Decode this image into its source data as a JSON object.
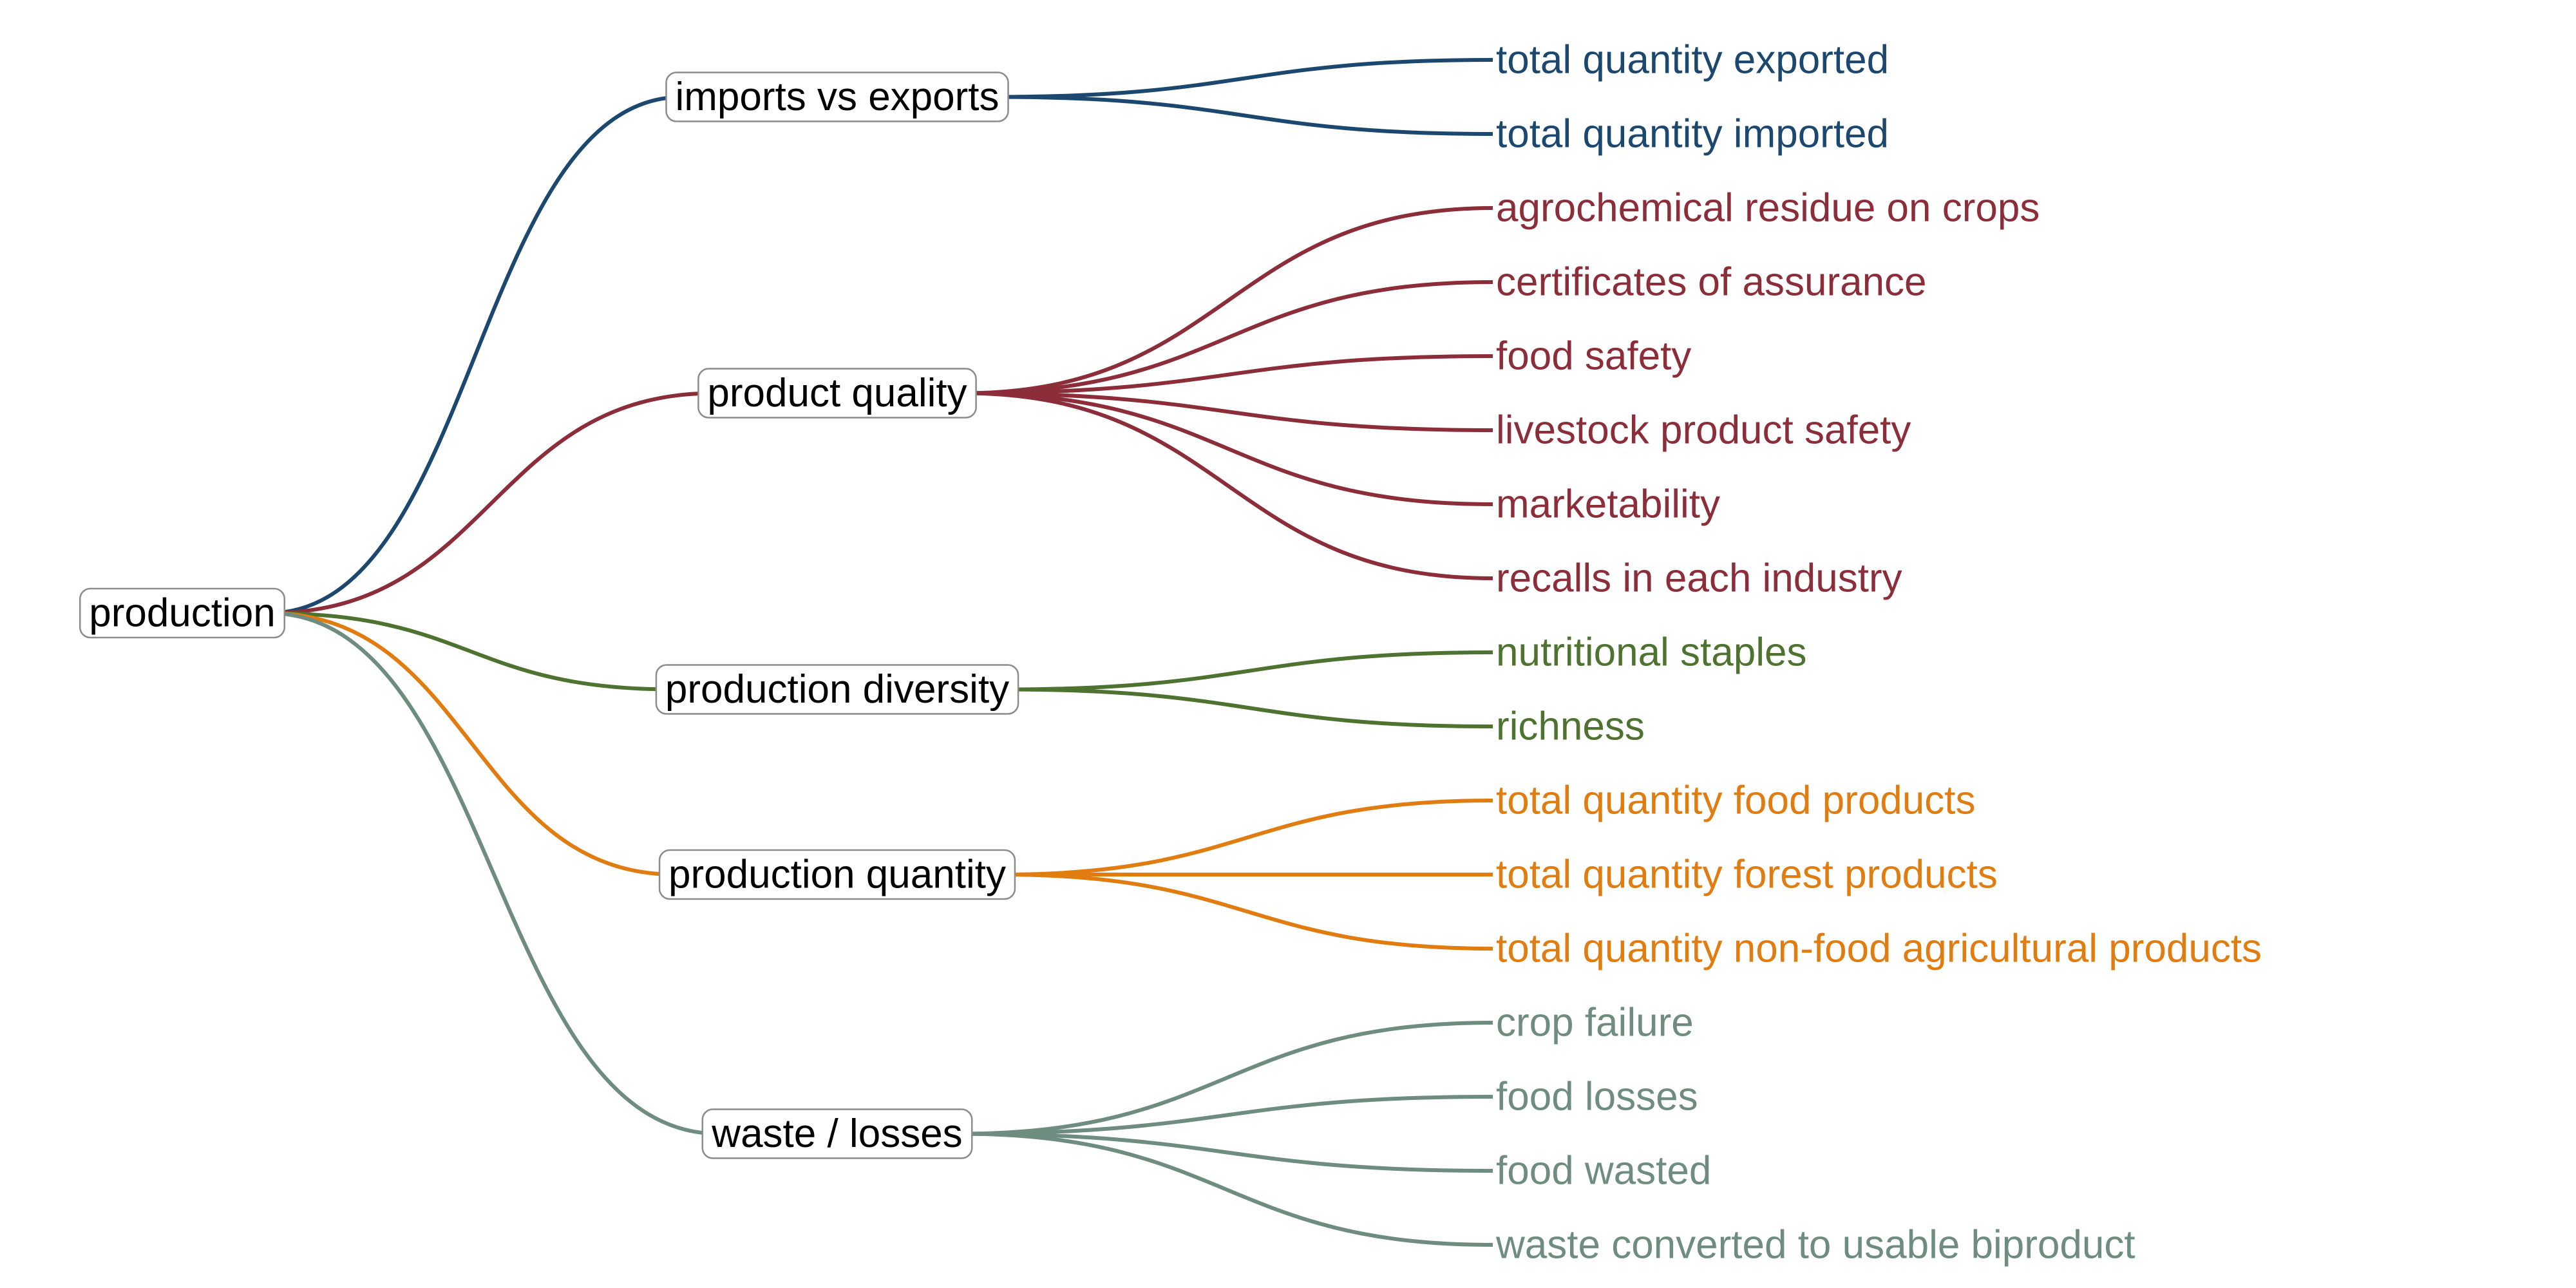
{
  "root": {
    "label": "production"
  },
  "branches": [
    {
      "label": "imports vs exports",
      "color": "#1c4870",
      "leaves": [
        "total quantity exported",
        "total quantity imported"
      ]
    },
    {
      "label": "product quality",
      "color": "#8c2d3a",
      "leaves": [
        "agrochemical residue on crops",
        "certificates of assurance",
        "food safety",
        "livestock product safety",
        "marketability",
        "recalls in each industry"
      ]
    },
    {
      "label": "production diversity",
      "color": "#4e7230",
      "leaves": [
        "nutritional staples",
        "richness"
      ]
    },
    {
      "label": "production quantity",
      "color": "#e07c10",
      "leaves": [
        "total quantity food products",
        "total quantity forest products",
        "total quantity non-food agricultural products"
      ]
    },
    {
      "label": "waste / losses",
      "color": "#6e8c80",
      "leaves": [
        "crop failure",
        "food losses",
        "food wasted",
        "waste converted to usable biproduct"
      ]
    }
  ]
}
